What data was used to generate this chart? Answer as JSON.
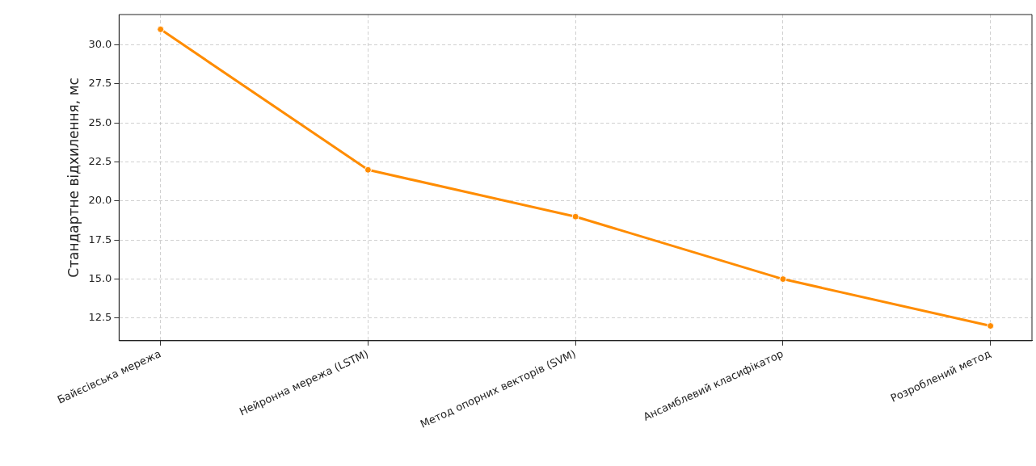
{
  "chart_data": {
    "type": "line",
    "ylabel": "Стандартне відхилення, мс",
    "categories": [
      "Байєсівська мережа",
      "Нейронна мережа (LSTM)",
      "Метод опорних векторів (SVM)",
      "Ансамблевий класифікатор",
      "Розроблений метод"
    ],
    "series": [
      {
        "color": "#ff8c00",
        "values": [
          31,
          22,
          19,
          15,
          12
        ]
      }
    ],
    "ylim": [
      11.05,
      31.95
    ],
    "yticks": [
      12.5,
      {
        "value": 15,
        "label": "15.0"
      },
      17.5,
      {
        "value": 20,
        "label": "20.0"
      },
      22.5,
      {
        "value": 25,
        "label": "25.0"
      },
      27.5,
      {
        "value": 30,
        "label": "30.0"
      }
    ],
    "grid": true,
    "marker": "circle",
    "line_style": "solid"
  }
}
